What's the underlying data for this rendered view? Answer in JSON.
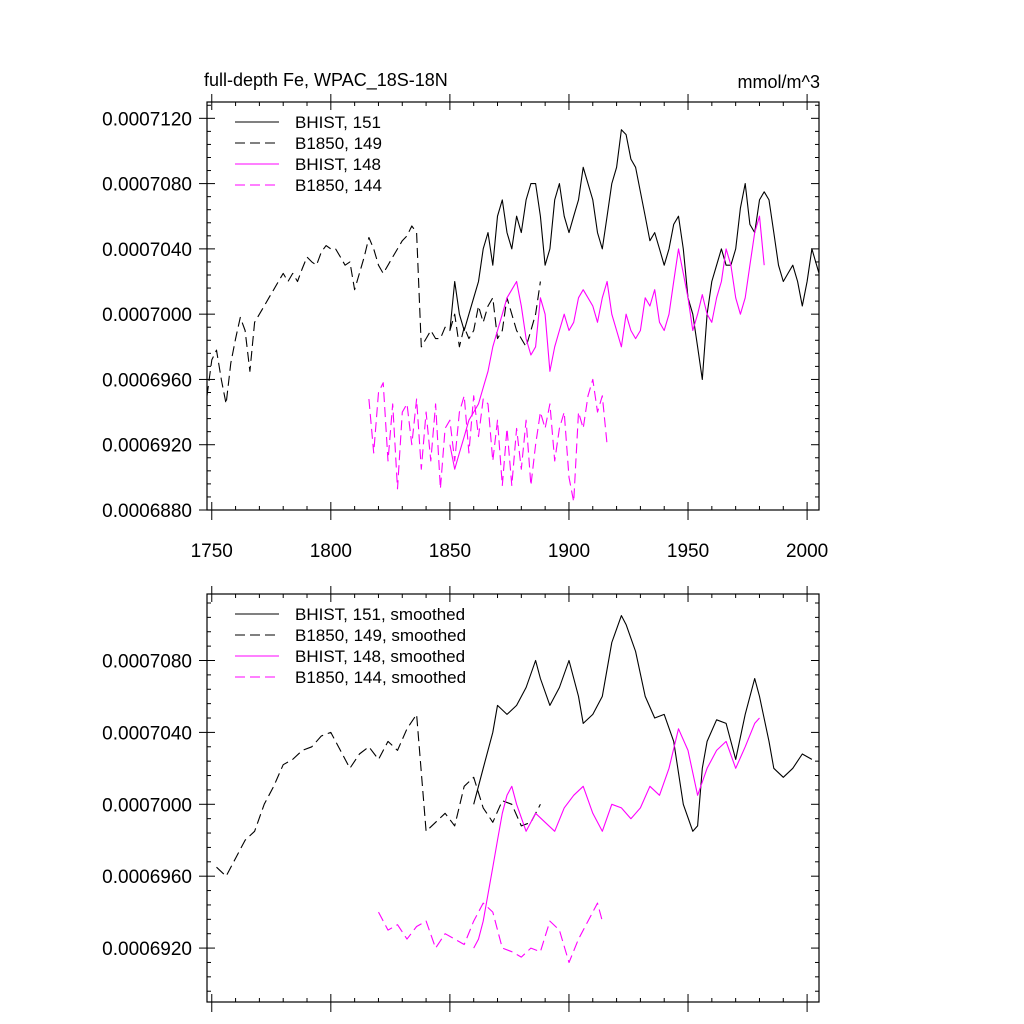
{
  "figure": {
    "title_left": "full-depth Fe, WPAC_18S-18N",
    "title_right": "mmol/m^3"
  },
  "colors": {
    "axis": "#000000",
    "series_black": "#000000",
    "series_magenta": "#ff00ff"
  },
  "chart_data": [
    {
      "type": "line",
      "title": "full-depth Fe, WPAC_18S-18N",
      "units": "mmol/m^3",
      "xlim": [
        1748,
        2005
      ],
      "ylim": [
        0.000688,
        0.000713
      ],
      "xticks": [
        1750,
        1800,
        1850,
        1900,
        1950,
        2000
      ],
      "xtick_labels": [
        "1750",
        "1800",
        "1850",
        "1900",
        "1950",
        "2000"
      ],
      "yticks": [
        0.000688,
        0.000692,
        0.000696,
        0.0007,
        0.000704,
        0.000708,
        0.000712
      ],
      "ytick_labels": [
        "0.0006880",
        "0.0006920",
        "0.0006960",
        "0.0007000",
        "0.0007040",
        "0.0007080",
        "0.0007120"
      ],
      "legend_position": "top-left",
      "series": [
        {
          "name": "BHIST, 151",
          "style": "solid",
          "color": "#000000",
          "x": [
            1850,
            1852,
            1854,
            1856,
            1858,
            1860,
            1862,
            1864,
            1866,
            1868,
            1870,
            1872,
            1874,
            1876,
            1878,
            1880,
            1882,
            1884,
            1886,
            1888,
            1890,
            1892,
            1894,
            1896,
            1898,
            1900,
            1902,
            1904,
            1906,
            1908,
            1910,
            1912,
            1914,
            1916,
            1918,
            1920,
            1922,
            1924,
            1926,
            1928,
            1930,
            1932,
            1934,
            1936,
            1938,
            1940,
            1942,
            1944,
            1946,
            1948,
            1950,
            1952,
            1954,
            1956,
            1958,
            1960,
            1962,
            1964,
            1966,
            1968,
            1970,
            1972,
            1974,
            1976,
            1978,
            1980,
            1982,
            1984,
            1986,
            1988,
            1990,
            1992,
            1994,
            1996,
            1998,
            2000,
            2002,
            2005
          ],
          "y": [
            0.000699,
            0.000702,
            0.0007,
            0.000699,
            0.0007,
            0.000701,
            0.000702,
            0.000704,
            0.000705,
            0.000703,
            0.000706,
            0.000707,
            0.000705,
            0.000704,
            0.000706,
            0.000705,
            0.000707,
            0.000708,
            0.000708,
            0.000706,
            0.000703,
            0.000704,
            0.000707,
            0.000708,
            0.000706,
            0.000705,
            0.000706,
            0.000707,
            0.000709,
            0.000708,
            0.000707,
            0.000705,
            0.000704,
            0.000706,
            0.000708,
            0.000709,
            0.0007113,
            0.000711,
            0.0007095,
            0.000709,
            0.0007075,
            0.000706,
            0.0007045,
            0.000705,
            0.000704,
            0.000703,
            0.000704,
            0.0007055,
            0.000706,
            0.000704,
            0.000701,
            0.0007,
            0.000698,
            0.000696,
            0.0007,
            0.000702,
            0.000703,
            0.000704,
            0.000703,
            0.000703,
            0.000704,
            0.0007065,
            0.000708,
            0.0007055,
            0.000705,
            0.000707,
            0.0007075,
            0.000707,
            0.000705,
            0.000703,
            0.000702,
            0.0007025,
            0.000703,
            0.000702,
            0.0007005,
            0.000702,
            0.000704,
            0.0007025
          ]
        },
        {
          "name": "B1850, 149",
          "style": "dashed",
          "color": "#000000",
          "x": [
            1748,
            1750,
            1752,
            1754,
            1756,
            1758,
            1760,
            1762,
            1764,
            1766,
            1768,
            1770,
            1772,
            1774,
            1776,
            1778,
            1780,
            1782,
            1784,
            1786,
            1788,
            1790,
            1792,
            1794,
            1796,
            1798,
            1800,
            1802,
            1804,
            1806,
            1808,
            1810,
            1812,
            1814,
            1816,
            1818,
            1820,
            1822,
            1824,
            1826,
            1828,
            1830,
            1832,
            1834,
            1836,
            1838,
            1840,
            1842,
            1844,
            1846,
            1848,
            1850,
            1852,
            1854,
            1856,
            1858,
            1860,
            1862,
            1864,
            1866,
            1868,
            1870,
            1872,
            1874,
            1876,
            1878,
            1880,
            1882,
            1884,
            1886,
            1888
          ],
          "y": [
            0.000695,
            0.0006972,
            0.0006978,
            0.000696,
            0.0006945,
            0.000697,
            0.0006985,
            0.0006998,
            0.000699,
            0.0006965,
            0.0006995,
            0.0007,
            0.0007005,
            0.000701,
            0.0007015,
            0.000702,
            0.0007025,
            0.000702,
            0.0007025,
            0.000702,
            0.0007028,
            0.0007035,
            0.0007032,
            0.000703,
            0.0007038,
            0.0007042,
            0.000704,
            0.000704,
            0.0007035,
            0.000703,
            0.0007032,
            0.0007015,
            0.0007025,
            0.0007035,
            0.0007047,
            0.000704,
            0.000703,
            0.0007025,
            0.000703,
            0.0007035,
            0.000704,
            0.0007045,
            0.0007048,
            0.0007054,
            0.000705,
            0.000698,
            0.0006985,
            0.000699,
            0.0006985,
            0.0006985,
            0.0006992,
            0.000699,
            0.0007,
            0.000698,
            0.0006992,
            0.0006985,
            0.000699,
            0.0007005,
            0.0006995,
            0.0007005,
            0.000701,
            0.0006985,
            0.000699,
            0.000701,
            0.0007,
            0.000699,
            0.0006985,
            0.000698,
            0.000699,
            0.0007,
            0.000702
          ]
        },
        {
          "name": "BHIST, 148",
          "style": "solid",
          "color": "#ff00ff",
          "x": [
            1850,
            1852,
            1854,
            1856,
            1858,
            1860,
            1862,
            1864,
            1866,
            1868,
            1870,
            1872,
            1874,
            1876,
            1878,
            1880,
            1882,
            1884,
            1886,
            1888,
            1890,
            1892,
            1894,
            1896,
            1898,
            1900,
            1902,
            1904,
            1906,
            1908,
            1910,
            1912,
            1914,
            1916,
            1918,
            1920,
            1922,
            1924,
            1926,
            1928,
            1930,
            1932,
            1934,
            1936,
            1938,
            1940,
            1942,
            1944,
            1946,
            1948,
            1950,
            1952,
            1954,
            1956,
            1958,
            1960,
            1962,
            1964,
            1966,
            1968,
            1970,
            1972,
            1974,
            1976,
            1978,
            1980,
            1982
          ],
          "y": [
            0.000692,
            0.0006905,
            0.0006915,
            0.0006925,
            0.0006935,
            0.000694,
            0.0006945,
            0.0006955,
            0.0006965,
            0.000698,
            0.000699,
            0.0007,
            0.000701,
            0.0007015,
            0.000702,
            0.0007005,
            0.0006985,
            0.0006975,
            0.000698,
            0.000701,
            0.0007,
            0.0006965,
            0.000698,
            0.000699,
            0.0007,
            0.000699,
            0.0006995,
            0.000701,
            0.0007015,
            0.000701,
            0.0007005,
            0.0006995,
            0.000701,
            0.000702,
            0.0007,
            0.000699,
            0.000698,
            0.0007,
            0.000699,
            0.0006985,
            0.000699,
            0.000701,
            0.0007005,
            0.0007015,
            0.0006995,
            0.000699,
            0.0007,
            0.000702,
            0.000704,
            0.0007025,
            0.000701,
            0.000699,
            0.0007,
            0.0007012,
            0.0007,
            0.0006995,
            0.000701,
            0.000702,
            0.000704,
            0.000703,
            0.000701,
            0.0007,
            0.000701,
            0.000703,
            0.000705,
            0.000706,
            0.000703
          ]
        },
        {
          "name": "B1850, 144",
          "style": "dashed",
          "color": "#ff00ff",
          "x": [
            1816,
            1818,
            1820,
            1822,
            1824,
            1826,
            1828,
            1830,
            1832,
            1834,
            1836,
            1838,
            1840,
            1842,
            1844,
            1846,
            1848,
            1850,
            1852,
            1854,
            1856,
            1858,
            1860,
            1862,
            1864,
            1866,
            1868,
            1870,
            1872,
            1874,
            1876,
            1878,
            1880,
            1882,
            1884,
            1886,
            1888,
            1890,
            1892,
            1894,
            1896,
            1898,
            1900,
            1902,
            1904,
            1906,
            1908,
            1910,
            1912,
            1914,
            1916
          ],
          "y": [
            0.0006948,
            0.0006915,
            0.0006952,
            0.0006958,
            0.000691,
            0.0006945,
            0.0006893,
            0.000694,
            0.0006945,
            0.000692,
            0.0006948,
            0.0006905,
            0.000694,
            0.000691,
            0.0006945,
            0.0006893,
            0.000693,
            0.0006935,
            0.000691,
            0.000694,
            0.000695,
            0.0006915,
            0.000695,
            0.0006925,
            0.0006948,
            0.0006945,
            0.000691,
            0.0006935,
            0.0006895,
            0.000693,
            0.0006895,
            0.000693,
            0.0006905,
            0.0006935,
            0.0006895,
            0.000692,
            0.000694,
            0.000693,
            0.0006945,
            0.000691,
            0.000693,
            0.000694,
            0.00069,
            0.0006885,
            0.000694,
            0.000693,
            0.000695,
            0.000696,
            0.000694,
            0.000695,
            0.000692
          ]
        }
      ]
    },
    {
      "type": "line",
      "xlim": [
        1748,
        2005
      ],
      "ylim": [
        0.000689,
        0.0007117
      ],
      "xticks": [
        1750,
        1800,
        1850,
        1900,
        1950,
        2000
      ],
      "yticks": [
        0.000692,
        0.000696,
        0.0007,
        0.000704,
        0.000708
      ],
      "ytick_labels": [
        "0.0006920",
        "0.0006960",
        "0.0007000",
        "0.0007040",
        "0.0007080"
      ],
      "legend_position": "top-left",
      "series": [
        {
          "name": "BHIST, 151, smoothed",
          "style": "solid",
          "color": "#000000",
          "x": [
            1860,
            1864,
            1868,
            1870,
            1874,
            1878,
            1882,
            1886,
            1888,
            1892,
            1896,
            1900,
            1904,
            1906,
            1910,
            1914,
            1918,
            1922,
            1924,
            1928,
            1932,
            1936,
            1940,
            1944,
            1948,
            1952,
            1954,
            1956,
            1958,
            1962,
            1966,
            1970,
            1974,
            1978,
            1980,
            1984,
            1986,
            1990,
            1994,
            1998,
            2002
          ],
          "y": [
            0.0007,
            0.000702,
            0.000704,
            0.0007055,
            0.000705,
            0.0007055,
            0.0007065,
            0.000708,
            0.000707,
            0.0007055,
            0.0007065,
            0.000708,
            0.000706,
            0.0007045,
            0.000705,
            0.000706,
            0.000709,
            0.0007105,
            0.00071,
            0.0007085,
            0.000706,
            0.0007048,
            0.000705,
            0.0007035,
            0.0007,
            0.0006985,
            0.0006988,
            0.000702,
            0.0007035,
            0.0007047,
            0.0007045,
            0.0007025,
            0.000705,
            0.000707,
            0.000706,
            0.0007035,
            0.000702,
            0.0007015,
            0.000702,
            0.0007028,
            0.0007025
          ]
        },
        {
          "name": "B1850, 149, smoothed",
          "style": "dashed",
          "color": "#000000",
          "x": [
            1752,
            1756,
            1760,
            1764,
            1768,
            1772,
            1776,
            1780,
            1784,
            1788,
            1792,
            1796,
            1800,
            1804,
            1808,
            1812,
            1816,
            1820,
            1824,
            1828,
            1832,
            1836,
            1840,
            1844,
            1848,
            1852,
            1856,
            1860,
            1864,
            1868,
            1872,
            1876,
            1880,
            1884,
            1888
          ],
          "y": [
            0.0006965,
            0.000696,
            0.000697,
            0.000698,
            0.0006985,
            0.0007,
            0.000701,
            0.0007022,
            0.0007025,
            0.000703,
            0.0007032,
            0.0007038,
            0.000704,
            0.000703,
            0.000702,
            0.0007028,
            0.0007032,
            0.0007025,
            0.0007035,
            0.000703,
            0.0007042,
            0.000705,
            0.0006985,
            0.000699,
            0.0006995,
            0.0006988,
            0.000701,
            0.0007015,
            0.0006998,
            0.000699,
            0.0007002,
            0.0007,
            0.0006988,
            0.000699,
            0.0007
          ]
        },
        {
          "name": "BHIST, 148, smoothed",
          "style": "solid",
          "color": "#ff00ff",
          "x": [
            1860,
            1862,
            1864,
            1866,
            1868,
            1870,
            1872,
            1874,
            1876,
            1878,
            1882,
            1886,
            1890,
            1894,
            1898,
            1902,
            1906,
            1910,
            1914,
            1918,
            1922,
            1926,
            1930,
            1934,
            1938,
            1942,
            1946,
            1950,
            1954,
            1958,
            1962,
            1966,
            1970,
            1974,
            1978,
            1980
          ],
          "y": [
            0.000692,
            0.0006925,
            0.0006935,
            0.000695,
            0.0006965,
            0.000698,
            0.0006995,
            0.0007005,
            0.000701,
            0.0007,
            0.0006985,
            0.0006995,
            0.000699,
            0.0006985,
            0.0006998,
            0.0007005,
            0.000701,
            0.0006995,
            0.0006985,
            0.0007,
            0.0006998,
            0.0006992,
            0.0006998,
            0.000701,
            0.0007005,
            0.000702,
            0.0007042,
            0.000703,
            0.0007005,
            0.000702,
            0.000703,
            0.0007035,
            0.000702,
            0.0007032,
            0.0007045,
            0.0007048
          ]
        },
        {
          "name": "B1850, 144, smoothed",
          "style": "dashed",
          "color": "#ff00ff",
          "x": [
            1820,
            1824,
            1828,
            1832,
            1836,
            1840,
            1844,
            1848,
            1852,
            1856,
            1860,
            1864,
            1868,
            1872,
            1876,
            1880,
            1884,
            1888,
            1892,
            1896,
            1900,
            1904,
            1908,
            1912,
            1914
          ],
          "y": [
            0.000694,
            0.000693,
            0.0006933,
            0.0006925,
            0.0006932,
            0.0006935,
            0.000692,
            0.0006928,
            0.0006925,
            0.0006922,
            0.0006935,
            0.0006945,
            0.000694,
            0.000692,
            0.0006918,
            0.0006915,
            0.000692,
            0.0006918,
            0.0006935,
            0.000693,
            0.0006912,
            0.0006925,
            0.0006935,
            0.0006945,
            0.0006935
          ]
        }
      ]
    }
  ]
}
